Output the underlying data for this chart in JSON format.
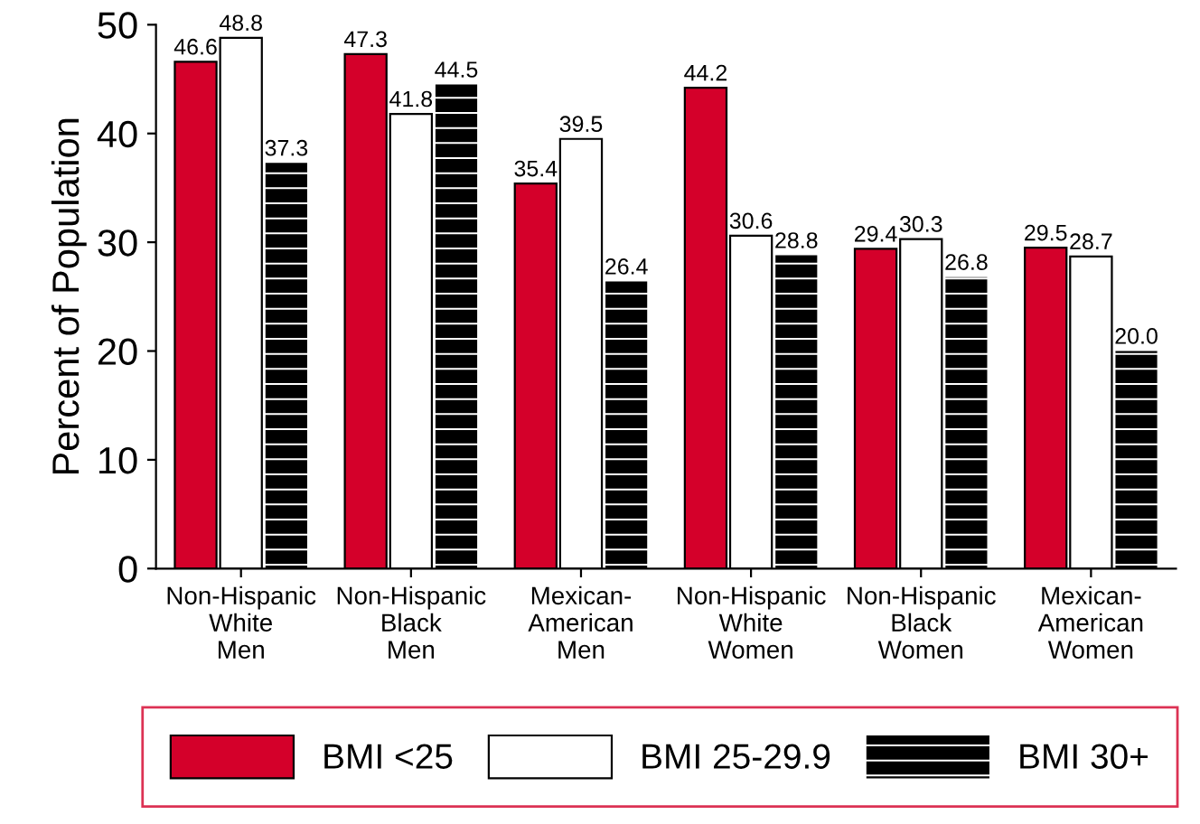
{
  "chart_data": {
    "type": "bar",
    "ylabel": "Percent of Population",
    "categories": [
      "Non-Hispanic\nWhite\nMen",
      "Non-Hispanic\nBlack\nMen",
      "Mexican-\nAmerican\nMen",
      "Non-Hispanic\nWhite\nWomen",
      "Non-Hispanic\nBlack\nWomen",
      "Mexican-\nAmerican\nWomen"
    ],
    "series": [
      {
        "name": "BMI <25",
        "color": "#d4002a",
        "values": [
          46.6,
          47.3,
          35.4,
          44.2,
          29.4,
          29.5
        ],
        "value_labels": [
          "46.6",
          "47.3",
          "35.4",
          "44.2",
          "29.4",
          "29.5"
        ]
      },
      {
        "name": "BMI 25-29.9",
        "color": "#ffffff",
        "values": [
          48.8,
          41.8,
          39.5,
          30.6,
          30.3,
          28.7
        ],
        "value_labels": [
          "48.8",
          "41.8",
          "39.5",
          "30.6",
          "30.3",
          "28.7"
        ]
      },
      {
        "name": "BMI 30+",
        "color": "#000000",
        "values": [
          37.3,
          44.5,
          26.4,
          28.8,
          26.8,
          20.0
        ],
        "value_labels": [
          "37.3",
          "44.5",
          "26.4",
          "28.8",
          "26.8",
          "20.0"
        ]
      }
    ],
    "ylim": [
      0,
      50
    ],
    "yticks": [
      0,
      10,
      20,
      30,
      40,
      50
    ],
    "grid": false,
    "legend": "bottom"
  }
}
